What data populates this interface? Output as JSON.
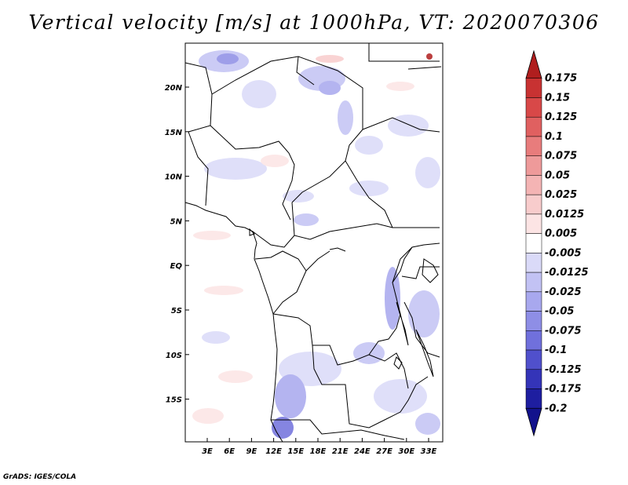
{
  "title": "Vertical velocity [m/s] at 1000hPa, VT: 2020070306",
  "credit": "GrADS: IGES/COLA",
  "lon_labels": [
    "3E",
    "6E",
    "9E",
    "12E",
    "15E",
    "18E",
    "21E",
    "24E",
    "27E",
    "30E",
    "33E"
  ],
  "lat_labels": [
    "20N",
    "15N",
    "10N",
    "5N",
    "EQ",
    "5S",
    "10S",
    "15S"
  ],
  "colorbar": {
    "levels": [
      "0.175",
      "0.15",
      "0.125",
      "0.1",
      "0.075",
      "0.05",
      "0.025",
      "0.0125",
      "0.005",
      "-0.005",
      "-0.0125",
      "-0.025",
      "-0.05",
      "-0.075",
      "-0.1",
      "-0.125",
      "-0.175",
      "-0.2"
    ],
    "colors": [
      "#b01e1e",
      "#c83232",
      "#d84848",
      "#e06060",
      "#e87c7c",
      "#ee9a9a",
      "#f4b4b4",
      "#f8cccc",
      "#fce4e4",
      "#ffffff",
      "#dadaf8",
      "#c2c2f4",
      "#a8a8ee",
      "#8e8ee6",
      "#7070dc",
      "#5050cc",
      "#3434b8",
      "#1e1ea0",
      "#12128c"
    ]
  }
}
